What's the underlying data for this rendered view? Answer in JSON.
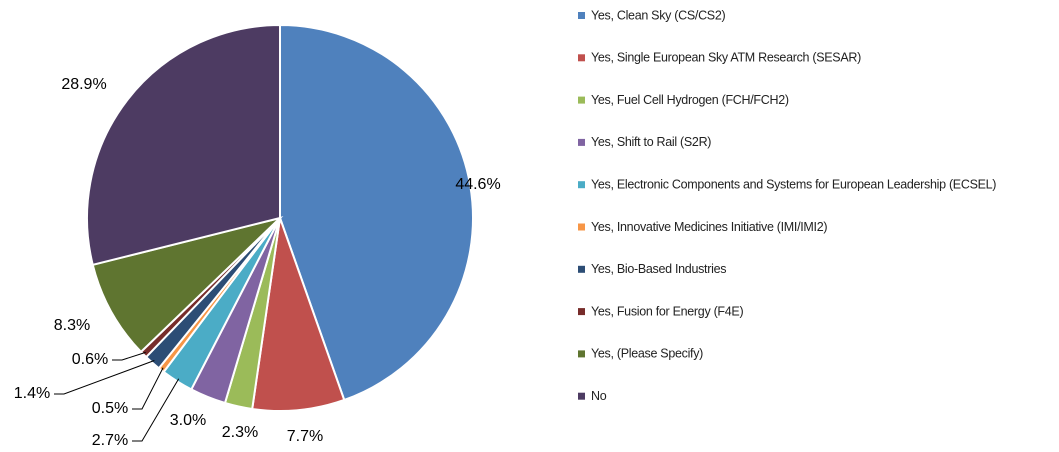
{
  "chart_data": {
    "type": "pie",
    "categories": [
      "Yes, Clean Sky (CS/CS2)",
      "Yes, Single European Sky ATM Research (SESAR)",
      "Yes, Fuel Cell Hydrogen (FCH/FCH2)",
      "Yes, Shift to Rail (S2R)",
      "Yes, Electronic Components and Systems for European Leadership (ECSEL)",
      "Yes, Innovative Medicines Initiative (IMI/IMI2)",
      "Yes, Bio-Based Industries",
      "Yes, Fusion for Energy (F4E)",
      "Yes, (Please Specify)",
      "No"
    ],
    "values": [
      44.6,
      7.7,
      2.3,
      3.0,
      2.7,
      0.5,
      1.4,
      0.6,
      8.3,
      28.9
    ],
    "value_labels": [
      "44.6%",
      "7.7%",
      "2.3%",
      "3.0%",
      "2.7%",
      "0.5%",
      "1.4%",
      "0.6%",
      "8.3%",
      "28.9%"
    ],
    "colors": [
      "#4f81bd",
      "#c0504d",
      "#9bbb59",
      "#8064a2",
      "#4bacc6",
      "#f79646",
      "#2c4d75",
      "#772c2a",
      "#5f7530",
      "#4d3b62"
    ],
    "legend": "right"
  }
}
